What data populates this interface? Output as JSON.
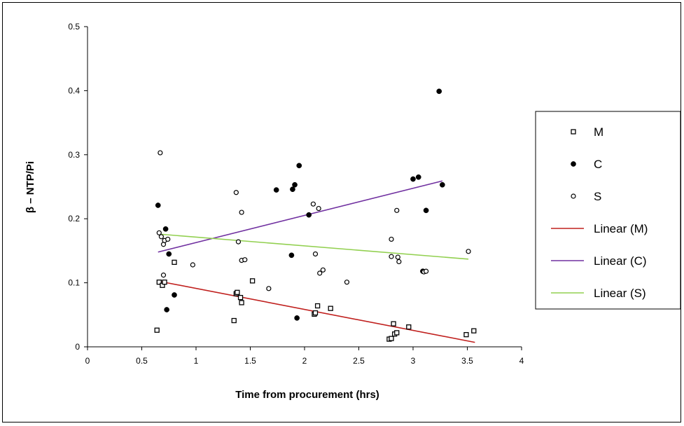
{
  "chart_data": {
    "type": "scatter",
    "title": "",
    "xlabel": "Time from procurement (hrs)",
    "ylabel": "β – NTP/Pi",
    "xlim": [
      0,
      4
    ],
    "ylim": [
      0,
      0.5
    ],
    "x_ticks": [
      "0",
      "0.5",
      "1",
      "1.5",
      "2",
      "2.5",
      "3",
      "3.5",
      "4"
    ],
    "y_ticks": [
      "0",
      "0.1",
      "0.2",
      "0.3",
      "0.4",
      "0.5"
    ],
    "grid": false,
    "legend_position": "right",
    "series": [
      {
        "name": "M",
        "marker": "square-open",
        "color": "#000000",
        "points": [
          [
            0.64,
            0.026
          ],
          [
            0.66,
            0.101
          ],
          [
            0.69,
            0.096
          ],
          [
            0.71,
            0.101
          ],
          [
            0.8,
            0.132
          ],
          [
            1.35,
            0.041
          ],
          [
            1.37,
            0.083
          ],
          [
            1.38,
            0.085
          ],
          [
            1.41,
            0.077
          ],
          [
            1.42,
            0.069
          ],
          [
            1.52,
            0.103
          ],
          [
            2.09,
            0.051
          ],
          [
            2.1,
            0.053
          ],
          [
            2.12,
            0.064
          ],
          [
            2.24,
            0.06
          ],
          [
            2.78,
            0.012
          ],
          [
            2.8,
            0.013
          ],
          [
            2.82,
            0.036
          ],
          [
            2.83,
            0.02
          ],
          [
            2.85,
            0.022
          ],
          [
            2.96,
            0.031
          ],
          [
            3.49,
            0.019
          ],
          [
            3.56,
            0.025
          ]
        ]
      },
      {
        "name": "C",
        "marker": "circle-filled",
        "color": "#000000",
        "points": [
          [
            0.65,
            0.221
          ],
          [
            0.72,
            0.184
          ],
          [
            0.73,
            0.058
          ],
          [
            0.75,
            0.145
          ],
          [
            0.8,
            0.081
          ],
          [
            1.74,
            0.245
          ],
          [
            1.88,
            0.143
          ],
          [
            1.89,
            0.246
          ],
          [
            1.91,
            0.253
          ],
          [
            1.93,
            0.045
          ],
          [
            1.95,
            0.283
          ],
          [
            2.04,
            0.206
          ],
          [
            3.0,
            0.262
          ],
          [
            3.05,
            0.265
          ],
          [
            3.09,
            0.118
          ],
          [
            3.12,
            0.213
          ],
          [
            3.24,
            0.399
          ],
          [
            3.27,
            0.253
          ]
        ]
      },
      {
        "name": "S",
        "marker": "circle-open",
        "color": "#000000",
        "points": [
          [
            0.66,
            0.178
          ],
          [
            0.67,
            0.303
          ],
          [
            0.68,
            0.172
          ],
          [
            0.7,
            0.16
          ],
          [
            0.7,
            0.112
          ],
          [
            0.71,
            0.166
          ],
          [
            0.74,
            0.168
          ],
          [
            0.97,
            0.128
          ],
          [
            1.37,
            0.241
          ],
          [
            1.39,
            0.164
          ],
          [
            1.42,
            0.21
          ],
          [
            1.42,
            0.135
          ],
          [
            1.45,
            0.136
          ],
          [
            1.67,
            0.091
          ],
          [
            2.08,
            0.223
          ],
          [
            2.1,
            0.145
          ],
          [
            2.13,
            0.216
          ],
          [
            2.14,
            0.115
          ],
          [
            2.17,
            0.12
          ],
          [
            2.39,
            0.101
          ],
          [
            2.8,
            0.168
          ],
          [
            2.8,
            0.141
          ],
          [
            2.85,
            0.213
          ],
          [
            2.86,
            0.14
          ],
          [
            2.87,
            0.133
          ],
          [
            3.1,
            0.117
          ],
          [
            3.12,
            0.118
          ],
          [
            3.51,
            0.149
          ]
        ]
      },
      {
        "name": "Linear (M)",
        "type": "line",
        "color": "#c0201e",
        "points": [
          [
            0.64,
            0.103
          ],
          [
            3.57,
            0.007
          ]
        ]
      },
      {
        "name": "Linear (C)",
        "type": "line",
        "color": "#7030a0",
        "points": [
          [
            0.65,
            0.148
          ],
          [
            3.27,
            0.259
          ]
        ]
      },
      {
        "name": "Linear (S)",
        "type": "line",
        "color": "#92d050",
        "points": [
          [
            0.66,
            0.176
          ],
          [
            3.51,
            0.137
          ]
        ]
      }
    ]
  }
}
